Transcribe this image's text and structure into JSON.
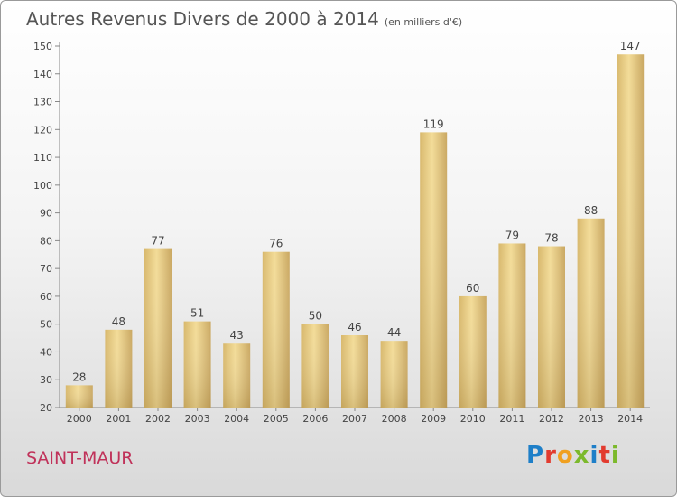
{
  "header": {
    "title": "Autres Revenus Divers de 2000 à 2014",
    "subtitle": "(en milliers d'€)"
  },
  "footer": {
    "city": "SAINT-MAUR",
    "logo_text": "Proxiti",
    "logo_colors": [
      "#1e7fc8",
      "#e23b2f",
      "#f0a020",
      "#7cb92c",
      "#1e7fc8",
      "#e23b2f",
      "#7cb92c"
    ]
  },
  "chart_data": {
    "type": "bar",
    "categories": [
      "2000",
      "2001",
      "2002",
      "2003",
      "2004",
      "2005",
      "2006",
      "2007",
      "2008",
      "2009",
      "2010",
      "2011",
      "2012",
      "2013",
      "2014"
    ],
    "values": [
      28,
      48,
      77,
      51,
      43,
      76,
      50,
      46,
      44,
      119,
      60,
      79,
      78,
      88,
      147
    ],
    "ylim": [
      20,
      150
    ],
    "yticks": [
      20,
      30,
      40,
      50,
      60,
      70,
      80,
      90,
      100,
      110,
      120,
      130,
      140,
      150
    ],
    "grid": false,
    "bar_color": "#e6c77e"
  }
}
